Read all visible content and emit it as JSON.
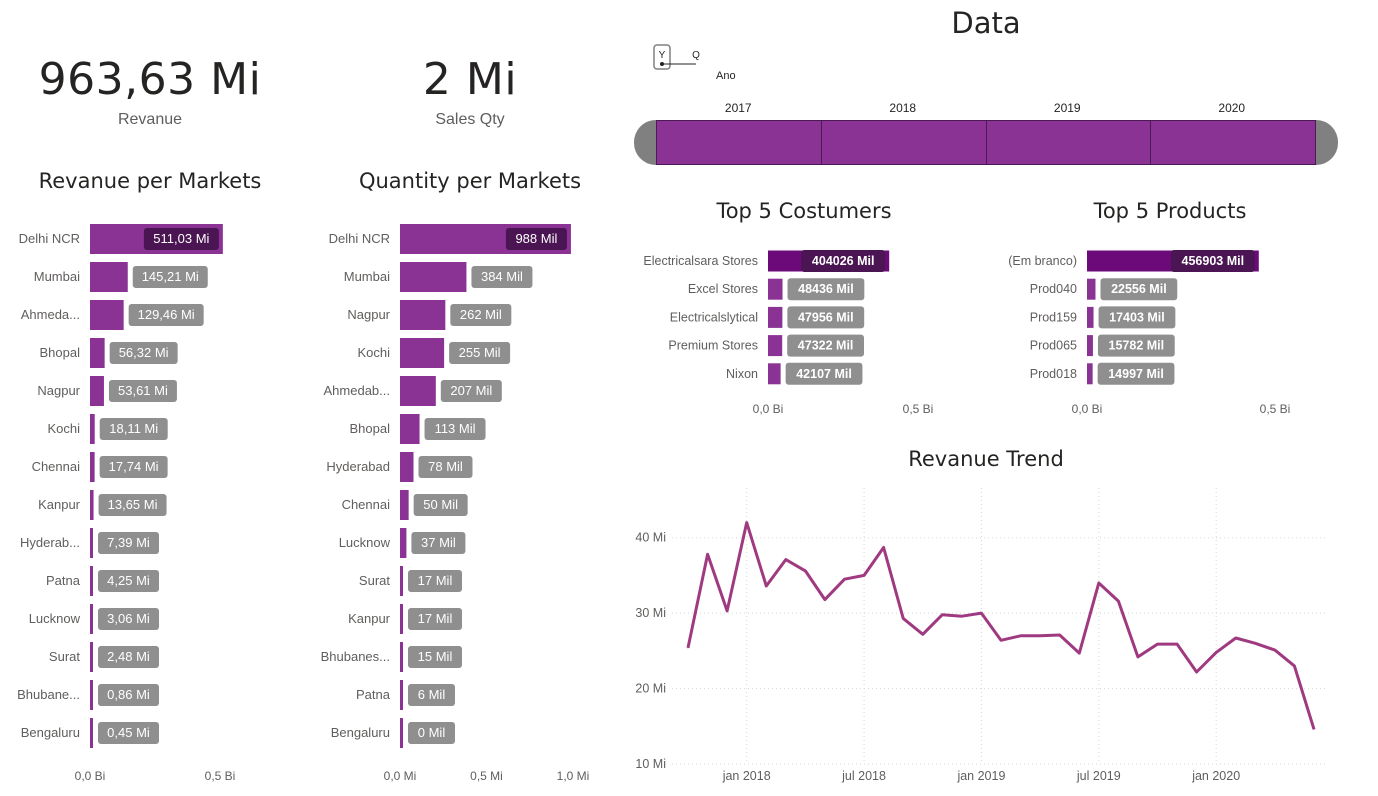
{
  "kpis": [
    {
      "value": "963,63 Mi",
      "label": "Revanue"
    },
    {
      "value": "2 Mi",
      "label": "Sales Qty"
    }
  ],
  "date_slicer": {
    "title": "Data",
    "hierarchy_icon": {
      "icon": "hierarchy-yq-icon",
      "y": "Y",
      "q": "Q"
    },
    "level_label": "Ano",
    "years": [
      "2017",
      "2018",
      "2019",
      "2020"
    ],
    "bar_color": "#8a3395",
    "handle_color": "#808080"
  },
  "colors": {
    "bar": "#8a3395",
    "bar_dark": "#6b0a78",
    "label_bg": "#8f8f8f",
    "label_dark": "#4a1552",
    "line": "#a03a80"
  },
  "chart_data": [
    {
      "id": "revenue_markets",
      "type": "bar",
      "orientation": "horizontal",
      "title": "Revanue per Markets",
      "unit": "Bi",
      "categories": [
        "Delhi NCR",
        "Mumbai",
        "Ahmeda...",
        "Bhopal",
        "Nagpur",
        "Kochi",
        "Chennai",
        "Kanpur",
        "Hyderab...",
        "Patna",
        "Lucknow",
        "Surat",
        "Bhubane...",
        "Bengaluru"
      ],
      "values": [
        0.51103,
        0.14521,
        0.12946,
        0.05632,
        0.05361,
        0.01811,
        0.01774,
        0.01365,
        0.00739,
        0.00425,
        0.00306,
        0.00248,
        0.00086,
        0.00045
      ],
      "data_labels": [
        "511,03 Mi",
        "145,21 Mi",
        "129,46 Mi",
        "56,32 Mi",
        "53,61 Mi",
        "18,11 Mi",
        "17,74 Mi",
        "13,65 Mi",
        "7,39 Mi",
        "4,25 Mi",
        "3,06 Mi",
        "2,48 Mi",
        "0,86 Mi",
        "0,45 Mi"
      ],
      "xlim": [
        0,
        0.5
      ],
      "x_ticks": [
        "0,0 Bi",
        "0,5 Bi"
      ]
    },
    {
      "id": "quantity_markets",
      "type": "bar",
      "orientation": "horizontal",
      "title": "Quantity per Markets",
      "unit": "Mi",
      "categories": [
        "Delhi NCR",
        "Mumbai",
        "Nagpur",
        "Kochi",
        "Ahmedab...",
        "Bhopal",
        "Hyderabad",
        "Chennai",
        "Lucknow",
        "Surat",
        "Kanpur",
        "Bhubanes...",
        "Patna",
        "Bengaluru"
      ],
      "values": [
        0.988,
        0.384,
        0.262,
        0.255,
        0.207,
        0.113,
        0.078,
        0.05,
        0.037,
        0.017,
        0.017,
        0.015,
        0.006,
        0.0
      ],
      "data_labels": [
        "988 Mil",
        "384 Mil",
        "262 Mil",
        "255 Mil",
        "207 Mil",
        "113 Mil",
        "78 Mil",
        "50 Mil",
        "37 Mil",
        "17 Mil",
        "17 Mil",
        "15 Mil",
        "6 Mil",
        "0 Mil"
      ],
      "xlim": [
        0,
        1.0
      ],
      "x_ticks": [
        "0,0 Mi",
        "0,5 Mi",
        "1,0 Mi"
      ]
    },
    {
      "id": "top_customers",
      "type": "bar",
      "orientation": "horizontal",
      "title": "Top 5 Costumers",
      "unit": "Bi",
      "categories": [
        "Electricalsara Stores",
        "Excel Stores",
        "Electricalslytical",
        "Premium Stores",
        "Nixon"
      ],
      "values": [
        0.404026,
        0.048436,
        0.047956,
        0.047322,
        0.042107
      ],
      "data_labels": [
        "404026 Mil",
        "48436 Mil",
        "47956 Mil",
        "47322 Mil",
        "42107 Mil"
      ],
      "xlim": [
        0,
        0.5
      ],
      "x_ticks": [
        "0,0 Bi",
        "0,5 Bi"
      ]
    },
    {
      "id": "top_products",
      "type": "bar",
      "orientation": "horizontal",
      "title": "Top 5 Products",
      "unit": "Bi",
      "categories": [
        "(Em branco)",
        "Prod040",
        "Prod159",
        "Prod065",
        "Prod018"
      ],
      "values": [
        0.456903,
        0.022556,
        0.017403,
        0.015782,
        0.014997
      ],
      "data_labels": [
        "456903 Mil",
        "22556 Mil",
        "17403 Mil",
        "15782 Mil",
        "14997 Mil"
      ],
      "xlim": [
        0,
        0.5
      ],
      "x_ticks": [
        "0,0 Bi",
        "0,5 Bi"
      ]
    },
    {
      "id": "revenue_trend",
      "type": "line",
      "title": "Revanue Trend",
      "unit": "Mi",
      "x": [
        "2017-10",
        "2017-11",
        "2017-12",
        "2018-01",
        "2018-02",
        "2018-03",
        "2018-04",
        "2018-05",
        "2018-06",
        "2018-07",
        "2018-08",
        "2018-09",
        "2018-10",
        "2018-11",
        "2018-12",
        "2019-01",
        "2019-02",
        "2019-03",
        "2019-04",
        "2019-05",
        "2019-06",
        "2019-07",
        "2019-08",
        "2019-09",
        "2019-10",
        "2019-11",
        "2019-12",
        "2020-01",
        "2020-02",
        "2020-03",
        "2020-04",
        "2020-05",
        "2020-06"
      ],
      "values": [
        25.4,
        37.8,
        30.3,
        42.0,
        33.6,
        37.1,
        35.6,
        31.8,
        34.5,
        35.0,
        38.7,
        29.3,
        27.2,
        29.8,
        29.6,
        30.0,
        26.4,
        27.0,
        27.0,
        27.1,
        24.7,
        34.0,
        31.6,
        24.2,
        25.9,
        25.9,
        22.2,
        24.8,
        26.7,
        26.0,
        25.1,
        23.0,
        14.6
      ],
      "ylim": [
        10,
        45
      ],
      "y_ticks": [
        10,
        20,
        30,
        40
      ],
      "y_tick_labels": [
        "10 Mi",
        "20 Mi",
        "30 Mi",
        "40 Mi"
      ],
      "x_ticks": [
        "jan 2018",
        "jul 2018",
        "jan 2019",
        "jul 2019",
        "jan 2020"
      ],
      "grid": true
    }
  ]
}
